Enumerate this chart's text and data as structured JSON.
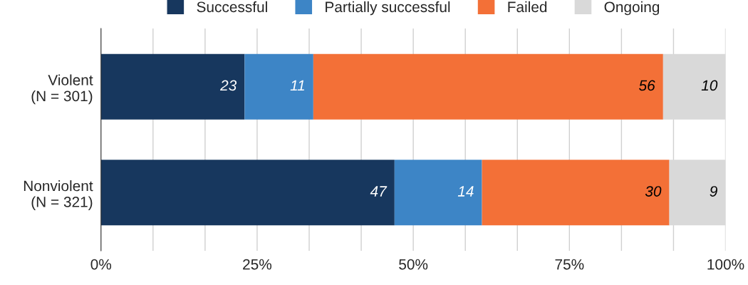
{
  "chart_data": {
    "type": "bar",
    "orientation": "horizontal",
    "stacked": true,
    "data_labels": true,
    "categories": [
      "Violent\n(N = 301)",
      "Nonviolent\n(N = 321)"
    ],
    "series": [
      {
        "name": "Successful",
        "color": "#17375e",
        "values": [
          23,
          47
        ]
      },
      {
        "name": "Partially successful",
        "color": "#3d85c6",
        "values": [
          11,
          14
        ]
      },
      {
        "name": "Failed",
        "color": "#f37037",
        "values": [
          56,
          30
        ]
      },
      {
        "name": "Ongoing",
        "color": "#d9d9d9",
        "values": [
          10,
          9
        ]
      }
    ],
    "xlim": [
      0,
      100
    ],
    "xticks": [
      {
        "value": 0,
        "label": "0%"
      },
      {
        "value": 8.333,
        "label": null
      },
      {
        "value": 16.667,
        "label": null
      },
      {
        "value": 25,
        "label": "25%"
      },
      {
        "value": 33.333,
        "label": null
      },
      {
        "value": 41.667,
        "label": null
      },
      {
        "value": 50,
        "label": "50%"
      },
      {
        "value": 58.333,
        "label": null
      },
      {
        "value": 66.667,
        "label": null
      },
      {
        "value": 75,
        "label": "75%"
      },
      {
        "value": 83.333,
        "label": null
      },
      {
        "value": 91.667,
        "label": null
      },
      {
        "value": 100,
        "label": "100%"
      }
    ],
    "grid": "x",
    "legend": "top"
  }
}
